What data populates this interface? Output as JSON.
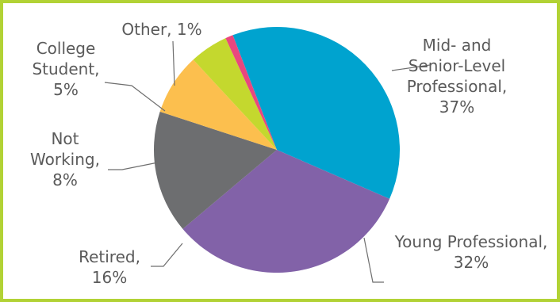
{
  "chart_data": {
    "type": "pie",
    "title": "",
    "start_angle_deg": -111,
    "direction": "clockwise",
    "slices": [
      {
        "lines": [
          "Mid- and",
          "Senior-Level",
          "Professional,",
          "37%"
        ],
        "value": 37,
        "color": "#00a3cf"
      },
      {
        "lines": [
          "Young Professional,",
          "32%"
        ],
        "value": 32,
        "color": "#8262a8"
      },
      {
        "lines": [
          "Retired,",
          "16%"
        ],
        "value": 16,
        "color": "#6d6e70"
      },
      {
        "lines": [
          "Not",
          "Working,",
          "8%"
        ],
        "value": 8,
        "color": "#fcbf4e"
      },
      {
        "lines": [
          "College",
          "Student,",
          "5%"
        ],
        "value": 5,
        "color": "#c4d82e"
      },
      {
        "lines": [
          "Other, 1%"
        ],
        "value": 1,
        "color": "#e9477e"
      }
    ]
  },
  "colors": {
    "frame_border": "#b2d235",
    "label_text": "#5a5a5a",
    "leader_line": "#6e6e6e"
  }
}
